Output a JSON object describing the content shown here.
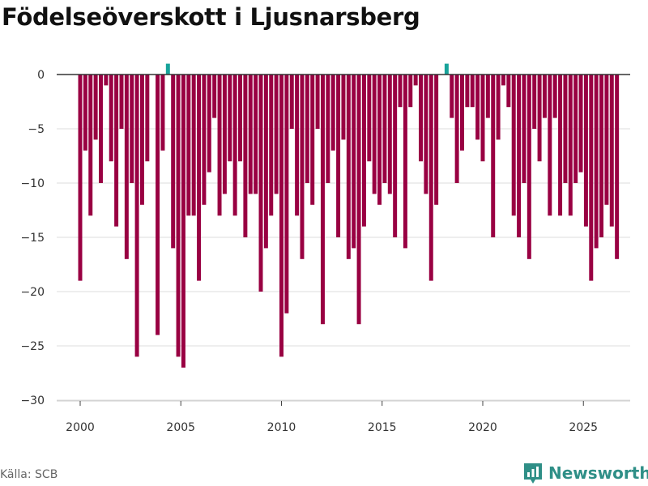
{
  "title": "Födelseöverskott i Ljusnarsberg",
  "source": "Källa: SCB",
  "brand": "Newsworthy",
  "colors": {
    "bar": "#990042",
    "positive": "#17a39a",
    "grid": "#dddddd",
    "zero": "#333333",
    "brand": "#2f8f87"
  },
  "chart_data": {
    "type": "bar",
    "title": "Födelseöverskott i Ljusnarsberg",
    "xlabel": "",
    "ylabel": "",
    "frequency": "monthly-ish periods, 2000–2025",
    "start": 2000.0,
    "step": 0.2564,
    "ylim": [
      -30,
      2
    ],
    "yticks": [
      0,
      -5,
      -10,
      -15,
      -20,
      -25,
      -30
    ],
    "ytick_labels": [
      "0",
      "−5",
      "−10",
      "−15",
      "−20",
      "−25",
      "−30"
    ],
    "xticks": [
      2000,
      2005,
      2010,
      2015,
      2020,
      2025
    ],
    "xlim": [
      1999,
      2027.2
    ],
    "values": [
      -19,
      -7,
      -13,
      -6,
      -10,
      -1,
      -8,
      -14,
      -5,
      -17,
      -10,
      -26,
      -12,
      -8,
      0,
      -24,
      -7,
      1,
      -16,
      -26,
      -27,
      -13,
      -13,
      -19,
      -12,
      -9,
      -4,
      -13,
      -11,
      -8,
      -13,
      -8,
      -15,
      -11,
      -11,
      -20,
      -16,
      -13,
      -11,
      -26,
      -22,
      -5,
      -13,
      -17,
      -10,
      -12,
      -5,
      -23,
      -10,
      -7,
      -15,
      -6,
      -17,
      -16,
      -23,
      -14,
      -8,
      -11,
      -12,
      -10,
      -11,
      -15,
      -3,
      -16,
      -3,
      -1,
      -8,
      -11,
      -19,
      -12,
      0,
      1,
      -4,
      -10,
      -7,
      -3,
      -3,
      -6,
      -8,
      -4,
      -15,
      -6,
      -1,
      -3,
      -13,
      -15,
      -10,
      -17,
      -5,
      -8,
      -4,
      -13,
      -4,
      -13,
      -10,
      -13,
      -10,
      -9,
      -14,
      -19,
      -16,
      -15,
      -12,
      -14,
      -17
    ]
  }
}
